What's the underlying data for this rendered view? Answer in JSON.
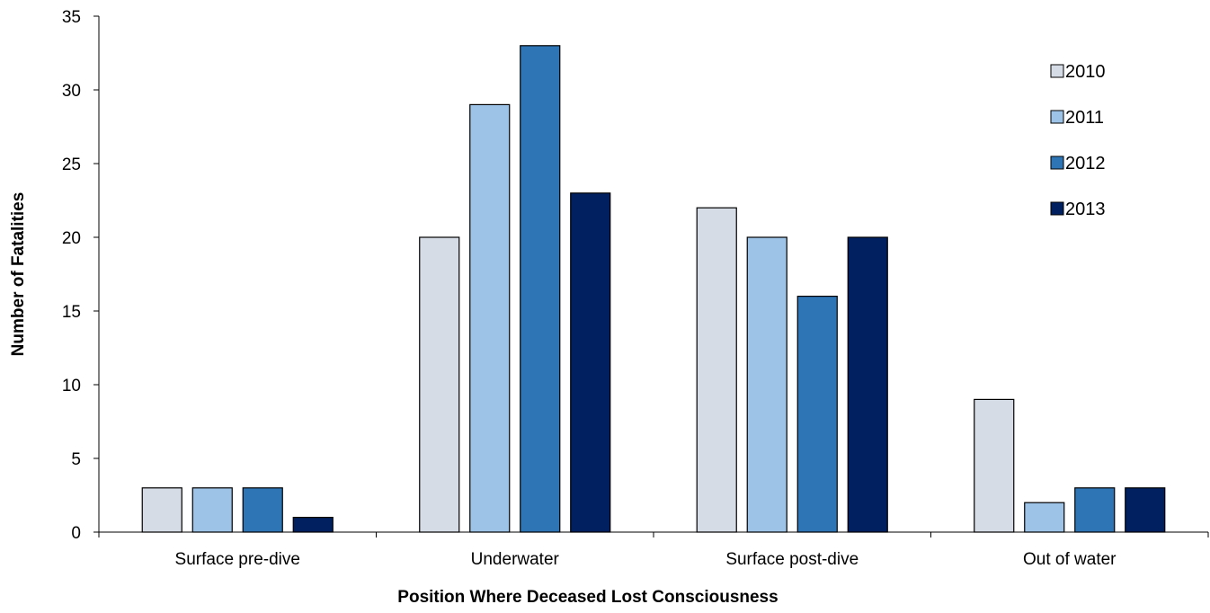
{
  "chart_data": {
    "type": "bar",
    "title": "",
    "xlabel": "Position Where Deceased Lost Consciousness",
    "ylabel": "Number of Fatalities",
    "categories": [
      "Surface pre-dive",
      "Underwater",
      "Surface post-dive",
      "Out of water"
    ],
    "ylim": [
      0,
      35
    ],
    "yticks": [
      "0",
      "5",
      "10",
      "15",
      "20",
      "25",
      "30",
      "35"
    ],
    "grid": false,
    "legend_position": "top-right",
    "series": [
      {
        "name": "2010",
        "color": "#d6dce5",
        "values": [
          3,
          20,
          22,
          9
        ]
      },
      {
        "name": "2011",
        "color": "#9dc3e6",
        "values": [
          3,
          29,
          20,
          2
        ]
      },
      {
        "name": "2012",
        "color": "#2e75b6",
        "values": [
          3,
          33,
          16,
          3
        ]
      },
      {
        "name": "2013",
        "color": "#002060",
        "values": [
          1,
          23,
          20,
          3
        ]
      }
    ]
  }
}
